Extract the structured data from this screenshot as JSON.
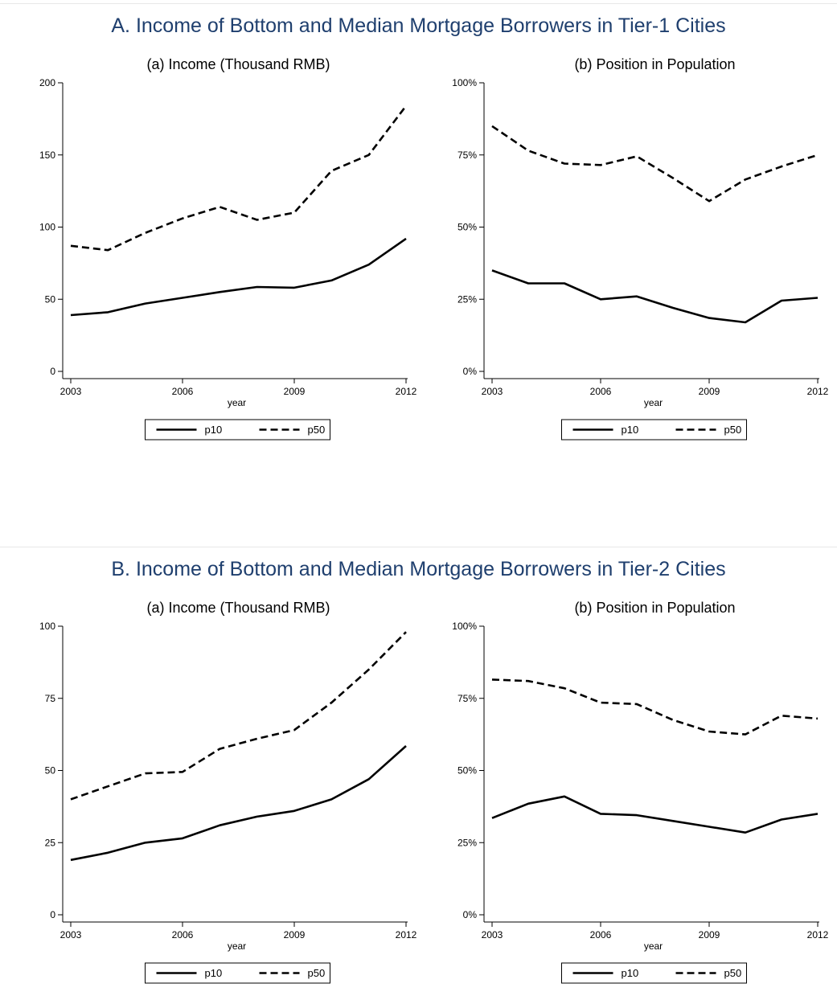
{
  "panels": [
    {
      "title": "A. Income of Bottom and Median Mortgage Borrowers in Tier-1 Cities",
      "charts": [
        {
          "type": "line",
          "title": "(a) Income (Thousand RMB)",
          "xlabel": "year",
          "x": [
            2003,
            2004,
            2005,
            2006,
            2007,
            2008,
            2009,
            2010,
            2011,
            2012
          ],
          "xticks": [
            2003,
            2006,
            2009,
            2012
          ],
          "ylim": [
            0,
            200
          ],
          "yticks": [
            0,
            50,
            100,
            150,
            200
          ],
          "ytick_labels": [
            "0",
            "50",
            "100",
            "150",
            "200"
          ],
          "series": [
            {
              "name": "p10",
              "style": "solid",
              "values": [
                39,
                41,
                47,
                51,
                55,
                58.5,
                58,
                63,
                74,
                92
              ]
            },
            {
              "name": "p50",
              "style": "dashed",
              "values": [
                87,
                84,
                96,
                106,
                114,
                105,
                110,
                139,
                150,
                184
              ]
            }
          ],
          "legend_position": "bottom"
        },
        {
          "type": "line",
          "title": "(b) Position in Population",
          "xlabel": "year",
          "x": [
            2003,
            2004,
            2005,
            2006,
            2007,
            2008,
            2009,
            2010,
            2011,
            2012
          ],
          "xticks": [
            2003,
            2006,
            2009,
            2012
          ],
          "ylim": [
            0,
            100
          ],
          "yticks": [
            0,
            25,
            50,
            75,
            100
          ],
          "ytick_labels": [
            "0%",
            "25%",
            "50%",
            "75%",
            "100%"
          ],
          "series": [
            {
              "name": "p10",
              "style": "solid",
              "values": [
                35,
                30.5,
                30.5,
                25,
                26,
                22,
                18.5,
                17,
                24.5,
                25.5
              ]
            },
            {
              "name": "p50",
              "style": "dashed",
              "values": [
                85,
                76.5,
                72,
                71.5,
                74.5,
                67,
                59,
                66.5,
                71,
                75
              ]
            }
          ],
          "legend_position": "bottom"
        }
      ]
    },
    {
      "title": "B. Income of Bottom and Median Mortgage Borrowers in Tier-2 Cities",
      "charts": [
        {
          "type": "line",
          "title": "(a) Income (Thousand RMB)",
          "xlabel": "year",
          "x": [
            2003,
            2004,
            2005,
            2006,
            2007,
            2008,
            2009,
            2010,
            2011,
            2012
          ],
          "xticks": [
            2003,
            2006,
            2009,
            2012
          ],
          "ylim": [
            0,
            100
          ],
          "yticks": [
            0,
            25,
            50,
            75,
            100
          ],
          "ytick_labels": [
            "0",
            "25",
            "50",
            "75",
            "100"
          ],
          "series": [
            {
              "name": "p10",
              "style": "solid",
              "values": [
                19,
                21.5,
                25,
                26.5,
                31,
                34,
                36,
                40,
                47,
                58.5
              ]
            },
            {
              "name": "p50",
              "style": "dashed",
              "values": [
                40,
                44.5,
                49,
                49.5,
                57.5,
                61,
                64,
                73.5,
                85,
                98
              ]
            }
          ],
          "legend_position": "bottom"
        },
        {
          "type": "line",
          "title": "(b) Position in Population",
          "xlabel": "year",
          "x": [
            2003,
            2004,
            2005,
            2006,
            2007,
            2008,
            2009,
            2010,
            2011,
            2012
          ],
          "xticks": [
            2003,
            2006,
            2009,
            2012
          ],
          "ylim": [
            0,
            100
          ],
          "yticks": [
            0,
            25,
            50,
            75,
            100
          ],
          "ytick_labels": [
            "0%",
            "25%",
            "50%",
            "75%",
            "100%"
          ],
          "series": [
            {
              "name": "p10",
              "style": "solid",
              "values": [
                33.5,
                38.5,
                41,
                35,
                34.5,
                32.5,
                30.5,
                28.5,
                33,
                35
              ]
            },
            {
              "name": "p50",
              "style": "dashed",
              "values": [
                81.5,
                81,
                78.5,
                73.5,
                73,
                67.5,
                63.5,
                62.5,
                69,
                68
              ]
            }
          ],
          "legend_position": "bottom"
        }
      ]
    }
  ]
}
